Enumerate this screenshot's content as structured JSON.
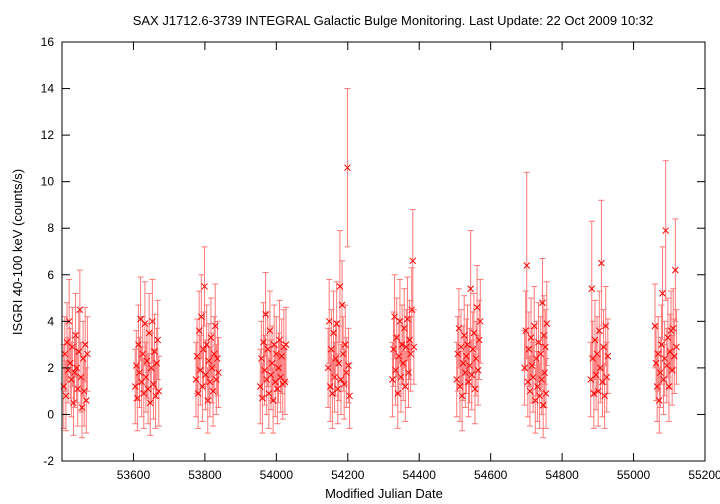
{
  "chart_data": {
    "type": "scatter",
    "title": "SAX J1712.6-3739   INTEGRAL Galactic Bulge Monitoring.  Last Update: 22 Oct 2009 10:32",
    "xlabel": "Modified Julian Date",
    "ylabel": "ISGRI 40-100 keV (counts/s)",
    "xlim": [
      53400,
      55200
    ],
    "ylim": [
      -2,
      16
    ],
    "x_ticks": [
      53600,
      53800,
      54000,
      54200,
      54400,
      54600,
      54800,
      55000,
      55200
    ],
    "y_ticks": [
      -2,
      0,
      2,
      4,
      6,
      8,
      10,
      12,
      14,
      16
    ],
    "grid": false,
    "legend": "none",
    "marker": "cross",
    "color": "#ff0000",
    "error_color": "#ff7777",
    "series": [
      {
        "points": [
          [
            53405,
            1.2,
            1.8
          ],
          [
            53408,
            2.6,
            1.6
          ],
          [
            53411,
            0.8,
            1.5
          ],
          [
            53414,
            3.1,
            1.7
          ],
          [
            53417,
            1.9,
            1.4
          ],
          [
            53420,
            4.0,
            1.8
          ],
          [
            53423,
            2.2,
            1.5
          ],
          [
            53426,
            1.5,
            1.6
          ],
          [
            53429,
            2.9,
            1.7
          ],
          [
            53432,
            0.5,
            1.4
          ],
          [
            53435,
            1.8,
            1.5
          ],
          [
            53438,
            3.4,
            1.8
          ],
          [
            53441,
            2.0,
            1.5
          ],
          [
            53444,
            1.1,
            1.6
          ],
          [
            53447,
            2.7,
            1.7
          ],
          [
            53450,
            4.5,
            1.7
          ],
          [
            53453,
            1.6,
            1.5
          ],
          [
            53456,
            0.3,
            1.3
          ],
          [
            53459,
            2.4,
            1.6
          ],
          [
            53462,
            1.0,
            1.5
          ],
          [
            53465,
            3.0,
            1.6
          ],
          [
            53468,
            0.6,
            1.4
          ],
          [
            53471,
            2.6,
            1.6
          ],
          [
            53605,
            1.2,
            1.6
          ],
          [
            53608,
            2.1,
            1.5
          ],
          [
            53611,
            0.7,
            1.4
          ],
          [
            53614,
            3.0,
            1.7
          ],
          [
            53617,
            1.8,
            1.5
          ],
          [
            53620,
            4.1,
            1.8
          ],
          [
            53623,
            1.4,
            1.5
          ],
          [
            53626,
            2.6,
            1.6
          ],
          [
            53629,
            0.9,
            1.5
          ],
          [
            53632,
            3.9,
            1.8
          ],
          [
            53635,
            1.6,
            1.5
          ],
          [
            53638,
            2.3,
            1.6
          ],
          [
            53641,
            1.1,
            1.5
          ],
          [
            53644,
            3.5,
            1.7
          ],
          [
            53647,
            0.5,
            1.4
          ],
          [
            53650,
            2.0,
            1.5
          ],
          [
            53653,
            4.0,
            1.8
          ],
          [
            53656,
            1.3,
            1.5
          ],
          [
            53659,
            2.7,
            1.6
          ],
          [
            53662,
            0.8,
            1.4
          ],
          [
            53665,
            2.2,
            1.5
          ],
          [
            53668,
            3.2,
            1.7
          ],
          [
            53671,
            1.0,
            1.5
          ],
          [
            53775,
            1.5,
            1.6
          ],
          [
            53778,
            2.5,
            1.6
          ],
          [
            53781,
            0.9,
            1.5
          ],
          [
            53784,
            3.6,
            1.7
          ],
          [
            53787,
            1.9,
            1.5
          ],
          [
            53790,
            4.2,
            1.8
          ],
          [
            53793,
            1.2,
            1.5
          ],
          [
            53796,
            2.8,
            1.6
          ],
          [
            53799,
            5.5,
            1.7
          ],
          [
            53802,
            1.7,
            1.5
          ],
          [
            53805,
            3.0,
            1.7
          ],
          [
            53808,
            0.6,
            1.4
          ],
          [
            53811,
            2.3,
            1.6
          ],
          [
            53814,
            1.4,
            1.5
          ],
          [
            53817,
            3.3,
            1.7
          ],
          [
            53820,
            2.0,
            1.5
          ],
          [
            53823,
            1.0,
            1.5
          ],
          [
            53826,
            2.6,
            1.6
          ],
          [
            53829,
            3.8,
            1.8
          ],
          [
            53832,
            1.5,
            1.5
          ],
          [
            53835,
            2.4,
            1.6
          ],
          [
            53838,
            1.8,
            1.5
          ],
          [
            53955,
            1.2,
            1.6
          ],
          [
            53958,
            2.4,
            1.6
          ],
          [
            53961,
            0.7,
            1.5
          ],
          [
            53964,
            3.1,
            1.7
          ],
          [
            53967,
            1.9,
            1.5
          ],
          [
            53970,
            4.3,
            1.8
          ],
          [
            53973,
            1.5,
            1.5
          ],
          [
            53976,
            2.8,
            1.6
          ],
          [
            53979,
            0.9,
            1.5
          ],
          [
            53982,
            3.6,
            1.7
          ],
          [
            53985,
            1.7,
            1.5
          ],
          [
            53988,
            2.2,
            1.6
          ],
          [
            53991,
            0.6,
            1.4
          ],
          [
            53994,
            3.0,
            1.7
          ],
          [
            53997,
            1.4,
            1.5
          ],
          [
            54000,
            2.6,
            1.6
          ],
          [
            54003,
            1.1,
            1.5
          ],
          [
            54006,
            2.0,
            1.5
          ],
          [
            54009,
            3.2,
            1.7
          ],
          [
            54012,
            1.6,
            1.5
          ],
          [
            54015,
            2.5,
            1.6
          ],
          [
            54018,
            1.3,
            1.5
          ],
          [
            54021,
            2.9,
            1.6
          ],
          [
            54024,
            1.4,
            1.4
          ],
          [
            54027,
            3.0,
            1.6
          ],
          [
            54145,
            2.0,
            1.7
          ],
          [
            54148,
            4.0,
            1.8
          ],
          [
            54151,
            1.2,
            1.5
          ],
          [
            54154,
            2.8,
            1.7
          ],
          [
            54157,
            0.9,
            1.5
          ],
          [
            54160,
            3.5,
            1.8
          ],
          [
            54163,
            1.6,
            1.5
          ],
          [
            54166,
            2.4,
            1.6
          ],
          [
            54169,
            3.9,
            1.8
          ],
          [
            54172,
            1.1,
            1.5
          ],
          [
            54175,
            2.2,
            1.6
          ],
          [
            54178,
            5.5,
            2.4
          ],
          [
            54181,
            1.5,
            1.5
          ],
          [
            54184,
            4.7,
            1.9
          ],
          [
            54187,
            2.6,
            1.6
          ],
          [
            54190,
            1.3,
            1.5
          ],
          [
            54193,
            3.0,
            1.7
          ],
          [
            54196,
            1.8,
            1.5
          ],
          [
            54199,
            10.6,
            3.4
          ],
          [
            54202,
            2.1,
            1.6
          ],
          [
            54205,
            0.8,
            1.4
          ],
          [
            54325,
            1.5,
            1.6
          ],
          [
            54328,
            2.8,
            1.6
          ],
          [
            54331,
            4.2,
            1.8
          ],
          [
            54334,
            1.9,
            1.5
          ],
          [
            54337,
            3.3,
            1.7
          ],
          [
            54340,
            0.9,
            1.5
          ],
          [
            54343,
            2.5,
            1.6
          ],
          [
            54346,
            4.0,
            1.8
          ],
          [
            54349,
            1.6,
            1.5
          ],
          [
            54352,
            3.0,
            1.7
          ],
          [
            54355,
            2.2,
            1.6
          ],
          [
            54358,
            3.7,
            1.7
          ],
          [
            54361,
            1.2,
            1.5
          ],
          [
            54364,
            2.9,
            1.6
          ],
          [
            54367,
            4.1,
            1.8
          ],
          [
            54370,
            1.8,
            1.5
          ],
          [
            54373,
            3.2,
            1.7
          ],
          [
            54376,
            2.6,
            1.6
          ],
          [
            54379,
            4.5,
            1.8
          ],
          [
            54382,
            6.6,
            2.2
          ],
          [
            54385,
            2.9,
            1.6
          ],
          [
            54505,
            1.5,
            1.6
          ],
          [
            54508,
            2.6,
            1.6
          ],
          [
            54511,
            3.7,
            1.7
          ],
          [
            54514,
            1.2,
            1.5
          ],
          [
            54517,
            2.9,
            1.6
          ],
          [
            54520,
            0.8,
            1.5
          ],
          [
            54523,
            2.2,
            1.6
          ],
          [
            54526,
            3.4,
            1.7
          ],
          [
            54529,
            1.8,
            1.5
          ],
          [
            54532,
            2.5,
            1.6
          ],
          [
            54535,
            3.0,
            1.7
          ],
          [
            54538,
            1.4,
            1.5
          ],
          [
            54541,
            2.1,
            1.6
          ],
          [
            54544,
            5.4,
            2.5
          ],
          [
            54547,
            1.7,
            1.5
          ],
          [
            54550,
            2.8,
            1.6
          ],
          [
            54553,
            3.5,
            1.7
          ],
          [
            54556,
            1.1,
            1.5
          ],
          [
            54559,
            2.4,
            1.6
          ],
          [
            54562,
            4.6,
            1.8
          ],
          [
            54565,
            1.9,
            1.5
          ],
          [
            54568,
            3.2,
            1.7
          ],
          [
            54571,
            4.0,
            1.8
          ],
          [
            54695,
            2.0,
            1.6
          ],
          [
            54698,
            3.6,
            1.7
          ],
          [
            54701,
            6.4,
            4.0
          ],
          [
            54704,
            1.4,
            1.5
          ],
          [
            54707,
            2.8,
            1.6
          ],
          [
            54710,
            1.0,
            1.5
          ],
          [
            54713,
            3.3,
            1.7
          ],
          [
            54716,
            2.1,
            1.6
          ],
          [
            54719,
            1.6,
            1.5
          ],
          [
            54722,
            3.8,
            1.7
          ],
          [
            54725,
            0.6,
            1.4
          ],
          [
            54728,
            2.4,
            1.6
          ],
          [
            54731,
            1.2,
            1.5
          ],
          [
            54734,
            3.1,
            1.7
          ],
          [
            54737,
            0.8,
            1.4
          ],
          [
            54740,
            2.6,
            1.6
          ],
          [
            54743,
            1.5,
            1.5
          ],
          [
            54745,
            4.8,
            1.9
          ],
          [
            54747,
            0.4,
            1.4
          ],
          [
            54749,
            3.4,
            1.7
          ],
          [
            54751,
            1.8,
            1.5
          ],
          [
            54753,
            2.9,
            1.6
          ],
          [
            54755,
            0.9,
            1.5
          ],
          [
            54757,
            3.9,
            1.8
          ],
          [
            54880,
            1.5,
            1.6
          ],
          [
            54883,
            5.4,
            2.9
          ],
          [
            54886,
            2.4,
            1.6
          ],
          [
            54889,
            0.9,
            1.5
          ],
          [
            54892,
            3.2,
            1.7
          ],
          [
            54895,
            1.7,
            1.5
          ],
          [
            54898,
            2.6,
            1.6
          ],
          [
            54901,
            1.0,
            1.5
          ],
          [
            54904,
            3.6,
            1.7
          ],
          [
            54907,
            2.0,
            1.5
          ],
          [
            54910,
            6.5,
            2.7
          ],
          [
            54913,
            1.4,
            1.5
          ],
          [
            54916,
            2.9,
            1.6
          ],
          [
            54919,
            0.8,
            1.4
          ],
          [
            54922,
            3.8,
            1.7
          ],
          [
            54925,
            1.6,
            1.5
          ],
          [
            54928,
            2.5,
            1.6
          ],
          [
            55060,
            3.8,
            1.8
          ],
          [
            55063,
            2.2,
            1.6
          ],
          [
            55066,
            1.2,
            1.5
          ],
          [
            55069,
            2.6,
            1.6
          ],
          [
            55072,
            0.6,
            1.4
          ],
          [
            55075,
            1.8,
            1.5
          ],
          [
            55078,
            3.0,
            1.7
          ],
          [
            55081,
            5.2,
            2.0
          ],
          [
            55084,
            1.5,
            1.5
          ],
          [
            55087,
            2.4,
            1.6
          ],
          [
            55090,
            7.9,
            3.0
          ],
          [
            55093,
            2.1,
            1.6
          ],
          [
            55096,
            3.3,
            1.7
          ],
          [
            55099,
            1.2,
            1.5
          ],
          [
            55102,
            2.7,
            1.6
          ],
          [
            55105,
            3.6,
            1.7
          ],
          [
            55108,
            1.9,
            1.5
          ],
          [
            55111,
            3.7,
            1.7
          ],
          [
            55114,
            2.5,
            1.6
          ],
          [
            55117,
            6.2,
            2.2
          ],
          [
            55120,
            2.9,
            1.6
          ]
        ]
      }
    ]
  }
}
